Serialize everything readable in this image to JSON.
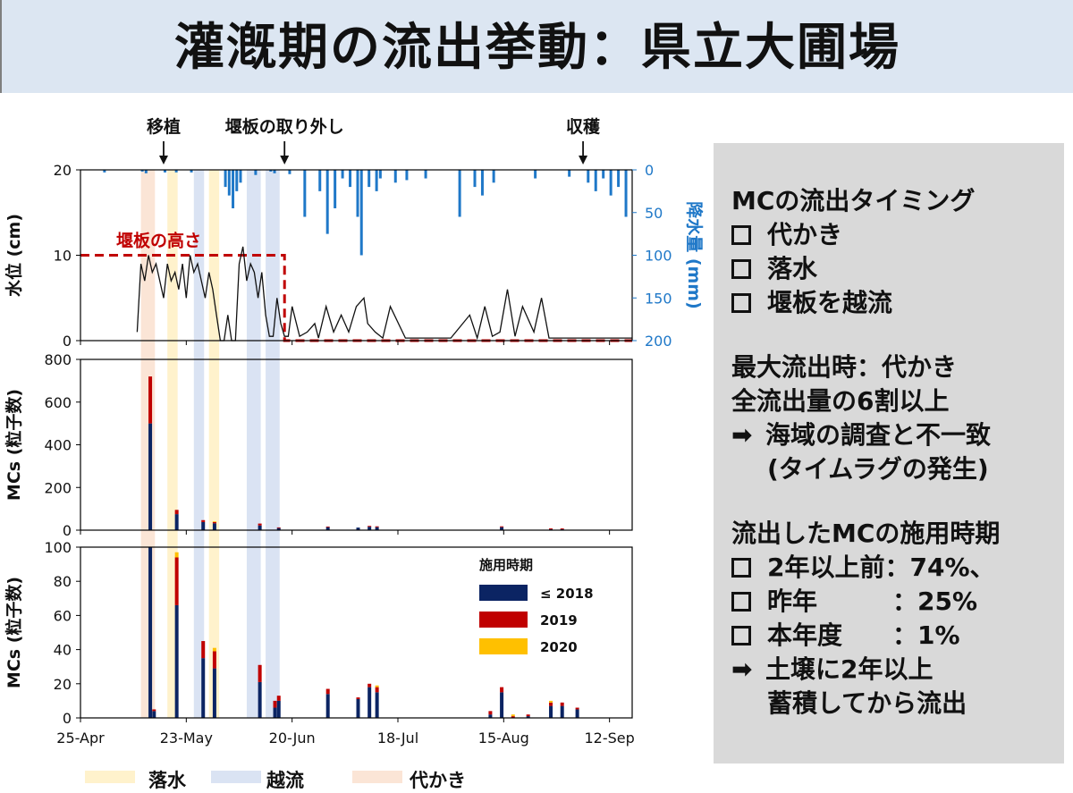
{
  "title": "灌漑期の流出挙動：県立大圃場",
  "colors": {
    "rain": "#1f78c8",
    "water": "#111111",
    "weir": "#c00000",
    "s2018": "#0b2463",
    "s2019": "#c00000",
    "s2020": "#ffc000",
    "drain_band": "#fff2cc",
    "overflow_band": "#dae3f3",
    "puddle_band": "#fbe5d6",
    "panel_bg": "#d9d9d9",
    "title_bg": "#dce6f2"
  },
  "chart_data": [
    {
      "type": "line",
      "ylabel": "水位 (cm)",
      "y2label": "降水量 (mm)",
      "ylim": [
        0,
        20
      ],
      "y2lim": [
        200,
        0
      ],
      "yticks": [
        "0",
        "10",
        "20"
      ],
      "y2ticks": [
        "0",
        "50",
        "100",
        "150",
        "200"
      ],
      "events": [
        {
          "label": "移植",
          "date": "2021-05-17"
        },
        {
          "label": "堰板の取り外し",
          "date": "2021-06-18"
        },
        {
          "label": "収穫",
          "date": "2021-09-05"
        }
      ],
      "weir": {
        "label": "堰板の高さ",
        "height_cm": 10,
        "end_date": "2021-06-18"
      },
      "water_level": {
        "dates": [
          "2021-05-10",
          "2021-05-11",
          "2021-05-12",
          "2021-05-13",
          "2021-05-14",
          "2021-05-15",
          "2021-05-16",
          "2021-05-17",
          "2021-05-18",
          "2021-05-19",
          "2021-05-20",
          "2021-05-21",
          "2021-05-22",
          "2021-05-23",
          "2021-05-24",
          "2021-05-25",
          "2021-05-26",
          "2021-05-27",
          "2021-05-28",
          "2021-05-29",
          "2021-05-30",
          "2021-05-31",
          "2021-06-01",
          "2021-06-02",
          "2021-06-03",
          "2021-06-04",
          "2021-06-05",
          "2021-06-06",
          "2021-06-07",
          "2021-06-08",
          "2021-06-09",
          "2021-06-10",
          "2021-06-11",
          "2021-06-12",
          "2021-06-13",
          "2021-06-14",
          "2021-06-15",
          "2021-06-16",
          "2021-06-17",
          "2021-06-18",
          "2021-06-19",
          "2021-06-20",
          "2021-06-22",
          "2021-06-24",
          "2021-06-26",
          "2021-06-27",
          "2021-06-29",
          "2021-07-01",
          "2021-07-03",
          "2021-07-05",
          "2021-07-07",
          "2021-07-09",
          "2021-07-10",
          "2021-07-12",
          "2021-07-14",
          "2021-07-16",
          "2021-07-20",
          "2021-07-25",
          "2021-08-01",
          "2021-08-06",
          "2021-08-08",
          "2021-08-10",
          "2021-08-12",
          "2021-08-14",
          "2021-08-16",
          "2021-08-18",
          "2021-08-20",
          "2021-08-23",
          "2021-08-25",
          "2021-08-27",
          "2021-09-01",
          "2021-09-18"
        ],
        "values": [
          1,
          9,
          7,
          10,
          8,
          9,
          7,
          5,
          9,
          7,
          8,
          6,
          9,
          5,
          10,
          8,
          9,
          7,
          5,
          8,
          6,
          3,
          0,
          0,
          3,
          0,
          0,
          9,
          11,
          7,
          9,
          8,
          5,
          8,
          3,
          0.5,
          0.5,
          5,
          2,
          0.5,
          0.5,
          4,
          0.5,
          1,
          2,
          0.3,
          4,
          1,
          3,
          1,
          4,
          5,
          2,
          1,
          0.3,
          4,
          0.3,
          0.3,
          0.3,
          3,
          0.3,
          4,
          0.5,
          1,
          6,
          0.5,
          4,
          1,
          5,
          0.3,
          0.3,
          0.3
        ]
      },
      "rain_mm": {
        "dates": [
          "2021-05-01",
          "2021-05-11",
          "2021-05-12",
          "2021-05-17",
          "2021-05-20",
          "2021-05-24",
          "2021-06-02",
          "2021-06-03",
          "2021-06-04",
          "2021-06-05",
          "2021-06-06",
          "2021-06-10",
          "2021-06-14",
          "2021-06-15",
          "2021-06-19",
          "2021-06-23",
          "2021-06-27",
          "2021-06-29",
          "2021-07-01",
          "2021-07-03",
          "2021-07-05",
          "2021-07-07",
          "2021-07-08",
          "2021-07-10",
          "2021-07-12",
          "2021-07-13",
          "2021-07-17",
          "2021-07-20",
          "2021-07-25",
          "2021-08-03",
          "2021-08-07",
          "2021-08-09",
          "2021-08-12",
          "2021-08-23",
          "2021-09-01",
          "2021-09-06",
          "2021-09-08",
          "2021-09-10",
          "2021-09-12",
          "2021-09-14",
          "2021-09-16"
        ],
        "values": [
          3,
          2,
          4,
          3,
          3,
          3,
          20,
          30,
          45,
          25,
          15,
          6,
          2,
          4,
          5,
          55,
          25,
          75,
          45,
          10,
          20,
          55,
          100,
          20,
          25,
          10,
          15,
          12,
          10,
          55,
          20,
          30,
          15,
          10,
          8,
          15,
          25,
          10,
          30,
          20,
          55
        ]
      }
    },
    {
      "type": "bar",
      "ylabel": "MCs (粒子数)",
      "ylim": [
        0,
        800
      ],
      "yticks": [
        "0",
        "200",
        "400",
        "600",
        "800"
      ],
      "bars": [
        {
          "date": "2021-05-13",
          "s2018": 500,
          "s2019": 220,
          "s2020": 0
        },
        {
          "date": "2021-05-20",
          "s2018": 75,
          "s2019": 20,
          "s2020": 0
        },
        {
          "date": "2021-05-27",
          "s2018": 38,
          "s2019": 9,
          "s2020": 0
        },
        {
          "date": "2021-05-30",
          "s2018": 32,
          "s2019": 7,
          "s2020": 2
        },
        {
          "date": "2021-06-11",
          "s2018": 22,
          "s2019": 9,
          "s2020": 0
        },
        {
          "date": "2021-06-16",
          "s2018": 10,
          "s2019": 3,
          "s2020": 0
        },
        {
          "date": "2021-06-29",
          "s2018": 14,
          "s2019": 3,
          "s2020": 0
        },
        {
          "date": "2021-07-07",
          "s2018": 12,
          "s2019": 0,
          "s2020": 0
        },
        {
          "date": "2021-07-10",
          "s2018": 16,
          "s2019": 4,
          "s2020": 0
        },
        {
          "date": "2021-07-12",
          "s2018": 14,
          "s2019": 4,
          "s2020": 0
        },
        {
          "date": "2021-08-14",
          "s2018": 14,
          "s2019": 4,
          "s2020": 0
        },
        {
          "date": "2021-08-27",
          "s2018": 4,
          "s2019": 4,
          "s2020": 0
        },
        {
          "date": "2021-08-30",
          "s2018": 4,
          "s2019": 4,
          "s2020": 0
        }
      ]
    },
    {
      "type": "bar",
      "ylabel": "MCs (粒子数)",
      "ylim": [
        0,
        100
      ],
      "yticks": [
        "0",
        "20",
        "40",
        "60",
        "80",
        "100"
      ],
      "xticks": [
        "25-Apr",
        "23-May",
        "20-Jun",
        "18-Jul",
        "15-Aug",
        "12-Sep"
      ],
      "xtick_dates": [
        "2021-04-25",
        "2021-05-23",
        "2021-06-20",
        "2021-07-18",
        "2021-08-15",
        "2021-09-12"
      ],
      "xlim": [
        "2021-04-25",
        "2021-09-18"
      ],
      "legend_title": "施用時期",
      "legend": [
        "≤ 2018",
        "2019",
        "2020"
      ],
      "bars": [
        {
          "date": "2021-05-13",
          "s2018": 100,
          "s2019": 0,
          "s2020": 0
        },
        {
          "date": "2021-05-14",
          "s2018": 4,
          "s2019": 1,
          "s2020": 0
        },
        {
          "date": "2021-05-20",
          "s2018": 66,
          "s2019": 28,
          "s2020": 3
        },
        {
          "date": "2021-05-27",
          "s2018": 35,
          "s2019": 10,
          "s2020": 0
        },
        {
          "date": "2021-05-30",
          "s2018": 29,
          "s2019": 10,
          "s2020": 2
        },
        {
          "date": "2021-06-11",
          "s2018": 21,
          "s2019": 10,
          "s2020": 0
        },
        {
          "date": "2021-06-15",
          "s2018": 6,
          "s2019": 4,
          "s2020": 0
        },
        {
          "date": "2021-06-16",
          "s2018": 10,
          "s2019": 3,
          "s2020": 0
        },
        {
          "date": "2021-06-29",
          "s2018": 14,
          "s2019": 3,
          "s2020": 0
        },
        {
          "date": "2021-07-07",
          "s2018": 11,
          "s2019": 1,
          "s2020": 0
        },
        {
          "date": "2021-07-10",
          "s2018": 18,
          "s2019": 2,
          "s2020": 0
        },
        {
          "date": "2021-07-12",
          "s2018": 15,
          "s2019": 3,
          "s2020": 1
        },
        {
          "date": "2021-08-11",
          "s2018": 2,
          "s2019": 2,
          "s2020": 0
        },
        {
          "date": "2021-08-14",
          "s2018": 15,
          "s2019": 3,
          "s2020": 0
        },
        {
          "date": "2021-08-17",
          "s2018": 0,
          "s2019": 1,
          "s2020": 1
        },
        {
          "date": "2021-08-21",
          "s2018": 1,
          "s2019": 1,
          "s2020": 0
        },
        {
          "date": "2021-08-27",
          "s2018": 7,
          "s2019": 2,
          "s2020": 1
        },
        {
          "date": "2021-08-30",
          "s2018": 7,
          "s2019": 2,
          "s2020": 0
        },
        {
          "date": "2021-09-03",
          "s2018": 5,
          "s2019": 1,
          "s2020": 0
        }
      ]
    }
  ],
  "periods": [
    {
      "type": "puddle",
      "start": "2021-05-11",
      "end": "2021-05-14"
    },
    {
      "type": "drain",
      "start": "2021-05-18",
      "end": "2021-05-20"
    },
    {
      "type": "overflow",
      "start": "2021-05-25",
      "end": "2021-05-27"
    },
    {
      "type": "drain",
      "start": "2021-05-29",
      "end": "2021-05-31"
    },
    {
      "type": "overflow",
      "start": "2021-06-08",
      "end": "2021-06-11"
    },
    {
      "type": "overflow",
      "start": "2021-06-13",
      "end": "2021-06-16"
    }
  ],
  "bottom_legend": {
    "drain": "落水",
    "overflow": "越流",
    "puddle": "代かき"
  },
  "panel": {
    "timing_title": "MCの流出タイミング",
    "timing_items": [
      "代かき",
      "落水",
      "堰板を越流"
    ],
    "max_line1": "最大流出時：代かき",
    "max_line2": "全流出量の6割以上",
    "max_line3": "海域の調査と不一致",
    "max_line4": "(タイムラグの発生)",
    "period_title": "流出したMCの施用時期",
    "period_items": [
      "2年以上前：74%、",
      "昨年　　　：25%",
      "本年度　　：1%"
    ],
    "conclusion1": "土壌に2年以上",
    "conclusion2": "蓄積してから流出"
  }
}
